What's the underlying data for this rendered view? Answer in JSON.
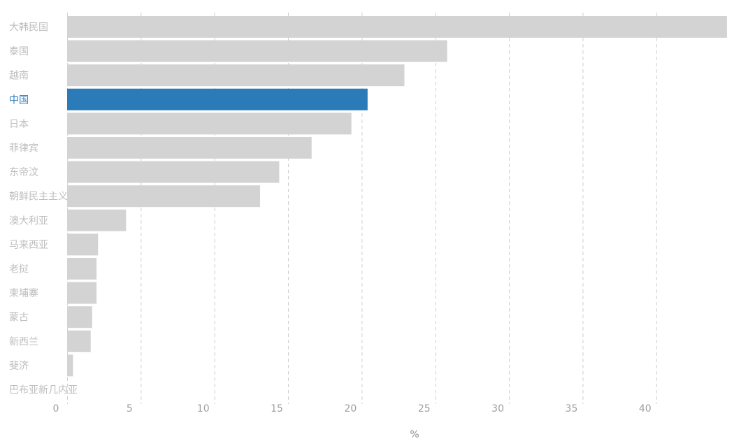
{
  "chart_data": {
    "type": "bar",
    "orientation": "horizontal",
    "categories": [
      "大韩民国",
      "泰国",
      "越南",
      "中国",
      "日本",
      "菲律宾",
      "东帝汶",
      "朝鲜民主主义",
      "澳大利亚",
      "马来西亚",
      "老挝",
      "柬埔寨",
      "蒙古",
      "新西兰",
      "斐济",
      "巴布亚新几内亚"
    ],
    "values": [
      44.8,
      25.8,
      22.9,
      20.4,
      19.3,
      16.6,
      14.4,
      13.1,
      4.0,
      2.1,
      2.0,
      2.0,
      1.7,
      1.6,
      0.4,
      0
    ],
    "highlight": "中国",
    "xlabel": "%",
    "ylabel": "",
    "title": "",
    "xlim": [
      0,
      45
    ],
    "xticks": [
      0,
      5,
      10,
      15,
      20,
      25,
      30,
      35,
      40
    ],
    "grid": "vertical-dashed",
    "legend": "none"
  },
  "colors": {
    "bar_default": "#d3d3d3",
    "bar_highlight": "#2b7bb9",
    "label_default": "#bdbdbd",
    "label_highlight": "#2b7bb9",
    "tick_label": "#9e9e9e",
    "grid": "#cfcfcf"
  }
}
